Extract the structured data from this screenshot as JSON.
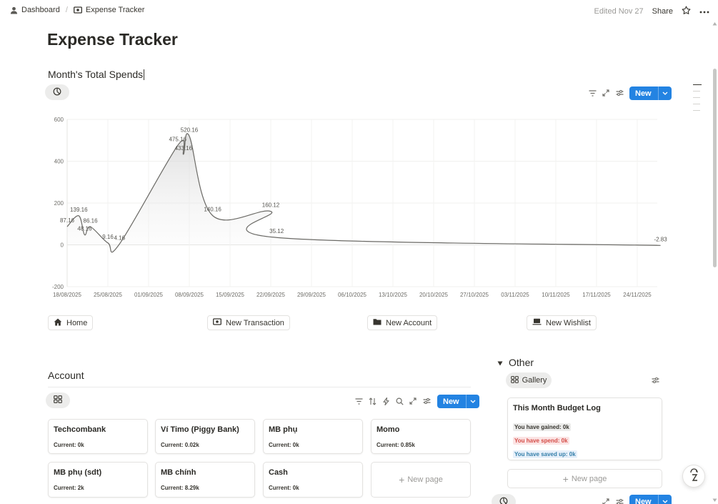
{
  "breadcrumb": {
    "home": "Dashboard",
    "separator": "/",
    "current": "Expense Tracker"
  },
  "topbar": {
    "edited": "Edited Nov 27",
    "share": "Share"
  },
  "page": {
    "title": "Expense Tracker"
  },
  "chart_section": {
    "heading": "Month's Total Spends",
    "new_label": "New"
  },
  "chart_data": {
    "type": "area",
    "title": "",
    "xlabel": "",
    "ylabel": "",
    "ylim": [
      -200,
      600
    ],
    "yticks": [
      "600",
      "400",
      "200",
      "0",
      "-200"
    ],
    "x_tick_labels": [
      "18/08/2025",
      "25/08/2025",
      "01/09/2025",
      "08/09/2025",
      "15/09/2025",
      "22/09/2025",
      "29/09/2025",
      "06/10/2025",
      "13/10/2025",
      "20/10/2025",
      "27/10/2025",
      "03/11/2025",
      "10/11/2025",
      "17/11/2025",
      "24/11/2025"
    ],
    "grid": true,
    "series": [
      {
        "points": [
          {
            "x": "2025-08-18",
            "y": 87.16,
            "label": "87.16"
          },
          {
            "x": "2025-08-20",
            "y": 139.16,
            "label": "139.16"
          },
          {
            "x": "2025-08-21",
            "y": 48.16,
            "label": "48.16"
          },
          {
            "x": "2025-08-22",
            "y": 86.16,
            "label": "86.16"
          },
          {
            "x": "2025-08-25",
            "y": 9.16,
            "label": "9.16"
          },
          {
            "x": "2025-08-27",
            "y": 4.16,
            "label": "4.16"
          },
          {
            "x": "2025-09-06",
            "y": 475.16,
            "label": "475.16"
          },
          {
            "x": "2025-09-07",
            "y": 433.16,
            "label": "433.16"
          },
          {
            "x": "2025-09-08",
            "y": 520.16,
            "label": "520.16"
          },
          {
            "x": "2025-09-12",
            "y": 140.16,
            "label": "140.16"
          },
          {
            "x": "2025-09-22",
            "y": 160.12,
            "label": "160.12"
          },
          {
            "x": "2025-09-23",
            "y": 35.12,
            "label": "35.12"
          },
          {
            "x": "2025-11-28",
            "y": -2.83,
            "label": "-2.83"
          }
        ]
      }
    ]
  },
  "links": {
    "home": "Home",
    "new_transaction": "New Transaction",
    "new_account": "New Account",
    "new_wishlist": "New Wishlist"
  },
  "account": {
    "heading": "Account",
    "new_label": "New",
    "cards": [
      {
        "name": "Techcombank",
        "value": "Current: 0k"
      },
      {
        "name": "Ví Timo (Piggy Bank)",
        "value": "Current: 0.02k"
      },
      {
        "name": "MB phụ",
        "value": "Current: 0k"
      },
      {
        "name": "Momo",
        "value": "Current: 0.85k"
      },
      {
        "name": "MB phụ (sdt)",
        "value": "Current: 2k"
      },
      {
        "name": "MB chính",
        "value": "Current: 8.29k"
      },
      {
        "name": "Cash",
        "value": "Current: 0k"
      }
    ],
    "new_page": "New page"
  },
  "other": {
    "heading": "Other",
    "view_label": "Gallery",
    "card_title": "This Month Budget Log",
    "gained": "You have gained: 0k",
    "spend": "You have spend: 0k",
    "saved": "You have saved up: 0k",
    "new_page": "New page",
    "new_label": "New"
  },
  "colors": {
    "accent": "#2383e2",
    "gained_bg": "#ececeb",
    "spend_bg": "#fbe4e4",
    "spend_fg": "#d44c47",
    "saved_bg": "#e7f0fa",
    "saved_fg": "#337ea9"
  }
}
